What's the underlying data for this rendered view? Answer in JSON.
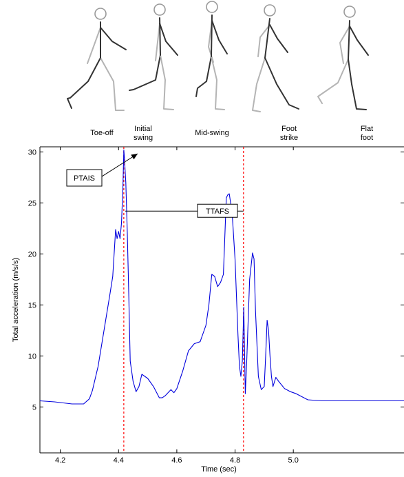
{
  "phases": [
    "Toe-off",
    "Initial\nswing",
    "Mid-swing",
    "Foot\nstrike",
    "Flat\nfoot"
  ],
  "chart_data": {
    "type": "line",
    "xlabel": "Time (sec)",
    "ylabel": "Total acceleration (m/s/s)",
    "xlim": [
      4.13,
      5.38
    ],
    "ylim": [
      0.5,
      30.5
    ],
    "xticks": [
      "4.2",
      "4.4",
      "4.6",
      "4.8",
      "5.0"
    ],
    "xtick_values": [
      4.2,
      4.4,
      4.6,
      4.8,
      5.0
    ],
    "yticks": [
      "5",
      "10",
      "15",
      "20",
      "25",
      "30"
    ],
    "ytick_values": [
      5,
      10,
      15,
      20,
      25,
      30
    ],
    "grid": false,
    "line_color": "#0000dd",
    "marker_color": "#ff0000",
    "annotations": {
      "ptais_label": "PTAIS",
      "ttafs_label": "TTAFS",
      "initial_swing_time": 4.418,
      "foot_strike_time": 4.829,
      "ttafs_level": 24.2
    },
    "series": [
      {
        "x": [
          4.13,
          4.18,
          4.24,
          4.28,
          4.3,
          4.31,
          4.33,
          4.35,
          4.37,
          4.38,
          4.39,
          4.395,
          4.4,
          4.405,
          4.41,
          4.415,
          4.418,
          4.42,
          4.425,
          4.43,
          4.435,
          4.44,
          4.45,
          4.46,
          4.47,
          4.48,
          4.49,
          4.5,
          4.52,
          4.54,
          4.55,
          4.56,
          4.58,
          4.59,
          4.6,
          4.62,
          4.64,
          4.66,
          4.68,
          4.7,
          4.71,
          4.72,
          4.73,
          4.74,
          4.75,
          4.76,
          4.77,
          4.775,
          4.78,
          4.79,
          4.8,
          4.81,
          4.815,
          4.82,
          4.825,
          4.83,
          4.835,
          4.84,
          4.85,
          4.86,
          4.865,
          4.87,
          4.88,
          4.89,
          4.9,
          4.905,
          4.91,
          4.915,
          4.92,
          4.925,
          4.93,
          4.94,
          4.95,
          4.97,
          4.99,
          5.01,
          5.05,
          5.1,
          5.2,
          5.3,
          5.38
        ],
        "y": [
          5.6,
          5.5,
          5.3,
          5.3,
          5.8,
          6.6,
          9.0,
          12.5,
          16.0,
          17.8,
          22.4,
          21.5,
          22.2,
          21.5,
          23.0,
          26.5,
          30.2,
          29.5,
          27.0,
          22.0,
          16.0,
          9.5,
          7.5,
          6.5,
          7.0,
          8.2,
          8.0,
          7.8,
          7.0,
          5.9,
          5.9,
          6.1,
          6.7,
          6.4,
          6.8,
          8.5,
          10.5,
          11.2,
          11.4,
          13.0,
          15.0,
          18.0,
          17.8,
          16.8,
          17.2,
          18.0,
          25.5,
          25.8,
          25.9,
          24.0,
          19.5,
          12.0,
          9.0,
          8.0,
          9.5,
          14.8,
          6.3,
          9.5,
          17.5,
          20.1,
          19.5,
          14.5,
          8.0,
          6.7,
          7.0,
          10.0,
          13.5,
          12.5,
          10.0,
          8.0,
          7.0,
          7.9,
          7.5,
          6.8,
          6.5,
          6.3,
          5.7,
          5.6,
          5.6,
          5.6,
          5.6
        ]
      }
    ]
  }
}
